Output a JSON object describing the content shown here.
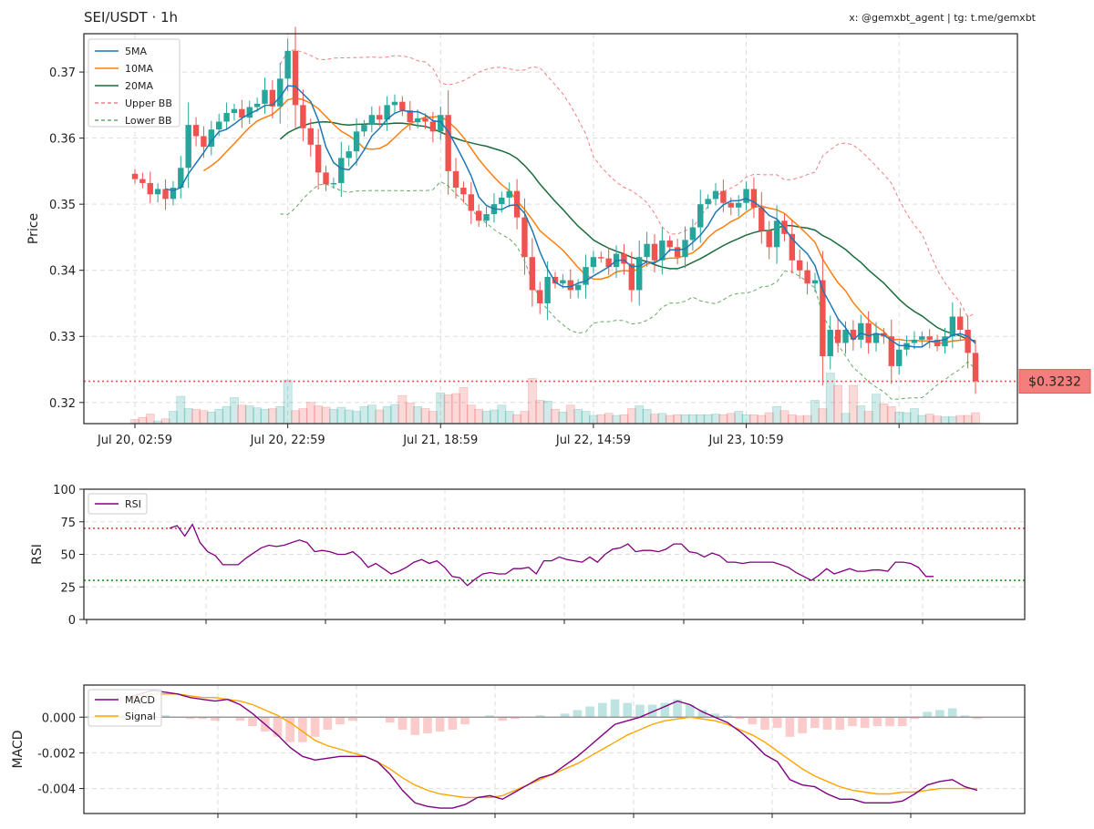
{
  "header": {
    "title": "SEI/USDT · 1h",
    "credit": "x: @gemxbt_agent | tg: t.me/gemxbt"
  },
  "colors": {
    "up": "#26a69a",
    "down": "#ef5350",
    "ma5": "#1f77b4",
    "ma10": "#ff7f0e",
    "ma20": "#1a6b3c",
    "bb_upper": "#f08080",
    "bb_lower": "#66aa66",
    "rsi": "#800080",
    "macd": "#800080",
    "signal": "#ffa500",
    "overbought": "#ef5350",
    "oversold": "#2ca02c"
  },
  "chart_data": [
    {
      "type": "candlestick",
      "ylabel": "Price",
      "ylim": [
        0.3168,
        0.3758
      ],
      "yticks": [
        0.32,
        0.33,
        0.34,
        0.35,
        0.36,
        0.37
      ],
      "ytick_labels": [
        "0.32",
        "0.33",
        "0.34",
        "0.35",
        "0.36",
        "0.37"
      ],
      "xtick_labels": [
        "Jul 20, 02:59",
        "Jul 20, 22:59",
        "Jul 21, 18:59",
        "Jul 22, 14:59",
        "Jul 23, 10:59"
      ],
      "xtick_index": [
        0,
        20,
        40,
        60,
        80
      ],
      "current_price": 0.3232,
      "current_price_label": "$0.3232",
      "grid": true,
      "legend_position": "top-left",
      "legend": [
        "5MA",
        "10MA",
        "20MA",
        "Upper BB",
        "Lower BB"
      ],
      "closes": [
        0.3538,
        0.3532,
        0.3515,
        0.3523,
        0.3508,
        0.3525,
        0.3555,
        0.362,
        0.3603,
        0.3587,
        0.3613,
        0.3625,
        0.3638,
        0.3644,
        0.3631,
        0.3647,
        0.3652,
        0.3673,
        0.3648,
        0.369,
        0.3732,
        0.365,
        0.3615,
        0.359,
        0.3548,
        0.353,
        0.3532,
        0.357,
        0.358,
        0.361,
        0.362,
        0.3635,
        0.3628,
        0.365,
        0.3655,
        0.3642,
        0.3624,
        0.363,
        0.3625,
        0.361,
        0.3635,
        0.355,
        0.3525,
        0.3515,
        0.349,
        0.3475,
        0.3485,
        0.35,
        0.351,
        0.352,
        0.348,
        0.342,
        0.337,
        0.335,
        0.339,
        0.338,
        0.3385,
        0.337,
        0.3378,
        0.3405,
        0.342,
        0.3418,
        0.3405,
        0.3425,
        0.341,
        0.337,
        0.342,
        0.344,
        0.3415,
        0.3445,
        0.3435,
        0.342,
        0.3446,
        0.3465,
        0.35,
        0.3508,
        0.352,
        0.3502,
        0.3495,
        0.3502,
        0.3523,
        0.3495,
        0.346,
        0.3435,
        0.3475,
        0.3455,
        0.3415,
        0.34,
        0.338,
        0.3385,
        0.327,
        0.331,
        0.329,
        0.331,
        0.3295,
        0.332,
        0.329,
        0.3305,
        0.33,
        0.3255,
        0.328,
        0.329,
        0.3295,
        0.33,
        0.3295,
        0.3285,
        0.33,
        0.333,
        0.331,
        0.3275,
        0.3232
      ],
      "volume_max": 100,
      "volumes": [
        6,
        9,
        14,
        4,
        7,
        18,
        40,
        22,
        21,
        19,
        17,
        21,
        25,
        38,
        27,
        26,
        23,
        21,
        22,
        25,
        64,
        19,
        22,
        31,
        26,
        24,
        21,
        24,
        20,
        18,
        25,
        27,
        20,
        25,
        28,
        41,
        30,
        25,
        22,
        18,
        45,
        42,
        44,
        53,
        27,
        21,
        18,
        20,
        27,
        18,
        13,
        18,
        66,
        34,
        33,
        21,
        17,
        27,
        21,
        18,
        12,
        13,
        15,
        12,
        13,
        22,
        26,
        21,
        14,
        15,
        12,
        13,
        13,
        13,
        13,
        13,
        14,
        13,
        15,
        18,
        13,
        13,
        12,
        16,
        25,
        19,
        13,
        11,
        12,
        34,
        22,
        74,
        56,
        15,
        56,
        26,
        18,
        43,
        29,
        25,
        17,
        16,
        22,
        12,
        14,
        11,
        10,
        10,
        12,
        12,
        16
      ]
    },
    {
      "type": "line",
      "ylabel": "RSI",
      "ylim": [
        0,
        100
      ],
      "yticks": [
        0,
        25,
        50,
        75,
        100
      ],
      "ytick_labels": [
        "0",
        "25",
        "50",
        "75",
        "100"
      ],
      "overbought": 70,
      "oversold": 30,
      "grid": true,
      "legend_position": "top-left",
      "legend": [
        "RSI"
      ],
      "x_start": 5,
      "series": [
        {
          "name": "RSI",
          "values": [
            70,
            72,
            64,
            73,
            59,
            52,
            49,
            42,
            42,
            42,
            47,
            51,
            55,
            57,
            56,
            57,
            59,
            61,
            59,
            52,
            53,
            52,
            50,
            50,
            52,
            47,
            40,
            43,
            39,
            35,
            37,
            40,
            44,
            46,
            43,
            45,
            40,
            33,
            32,
            26,
            31,
            35,
            36,
            35,
            35,
            39,
            39,
            40,
            35,
            45,
            45,
            48,
            46,
            45,
            44,
            48,
            44,
            50,
            54,
            55,
            58,
            52,
            53,
            53,
            52,
            54,
            58,
            58,
            52,
            51,
            48,
            51,
            49,
            44,
            44,
            43,
            44,
            44,
            44,
            44,
            42,
            40,
            36,
            33,
            30,
            34,
            39,
            35,
            37,
            39,
            37,
            37,
            38,
            38,
            37,
            44,
            44,
            43,
            40,
            33,
            33
          ]
        }
      ]
    },
    {
      "type": "bar+line",
      "ylabel": "MACD",
      "ylim": [
        -0.0054,
        0.0018
      ],
      "yticks": [
        0,
        -0.002,
        -0.004
      ],
      "ytick_labels": [
        "0.000",
        "-0.002",
        "-0.004"
      ],
      "grid": true,
      "legend_position": "top-left",
      "legend": [
        "MACD",
        "Signal"
      ],
      "series": [
        {
          "name": "MACD",
          "values": [
            0.0011,
            0.0013,
            0.0015,
            0.0014,
            0.0013,
            0.0011,
            0.001,
            0.0009,
            0.001,
            0.0007,
            0.0002,
            -0.0004,
            -0.001,
            -0.0017,
            -0.0022,
            -0.0024,
            -0.0023,
            -0.0022,
            -0.0022,
            -0.0022,
            -0.0025,
            -0.0032,
            -0.0041,
            -0.0048,
            -0.005,
            -0.0051,
            -0.0051,
            -0.0049,
            -0.0045,
            -0.0044,
            -0.0046,
            -0.0042,
            -0.0038,
            -0.0034,
            -0.0032,
            -0.0027,
            -0.0022,
            -0.0016,
            -0.001,
            -0.0004,
            -0.0002,
            0.0,
            0.0003,
            0.0006,
            0.0009,
            0.0007,
            0.0003,
            0.0,
            -0.0003,
            -0.0008,
            -0.0014,
            -0.0021,
            -0.0025,
            -0.0035,
            -0.0038,
            -0.0039,
            -0.0043,
            -0.0046,
            -0.0046,
            -0.0048,
            -0.0048,
            -0.0048,
            -0.0047,
            -0.0043,
            -0.0038,
            -0.0036,
            -0.0035,
            -0.0039,
            -0.0041
          ]
        },
        {
          "name": "Signal",
          "values": [
            0.001,
            0.0012,
            0.0013,
            0.0013,
            0.0013,
            0.0012,
            0.0011,
            0.0011,
            0.001,
            0.0009,
            0.0007,
            0.0004,
            0.0001,
            -0.0003,
            -0.0008,
            -0.0013,
            -0.0016,
            -0.0018,
            -0.002,
            -0.0022,
            -0.0025,
            -0.0029,
            -0.0034,
            -0.0038,
            -0.0041,
            -0.0043,
            -0.0044,
            -0.0045,
            -0.0045,
            -0.0045,
            -0.0044,
            -0.0041,
            -0.0038,
            -0.0035,
            -0.0032,
            -0.0029,
            -0.0026,
            -0.0022,
            -0.0018,
            -0.0014,
            -0.001,
            -0.0007,
            -0.0004,
            -0.0002,
            -0.0001,
            0.0,
            -0.0001,
            -0.0002,
            -0.0004,
            -0.0007,
            -0.001,
            -0.0014,
            -0.0019,
            -0.0024,
            -0.0029,
            -0.0033,
            -0.0036,
            -0.0039,
            -0.0041,
            -0.0042,
            -0.0043,
            -0.0043,
            -0.0042,
            -0.0042,
            -0.0041,
            -0.004,
            -0.004,
            -0.004,
            -0.004
          ]
        }
      ]
    }
  ]
}
